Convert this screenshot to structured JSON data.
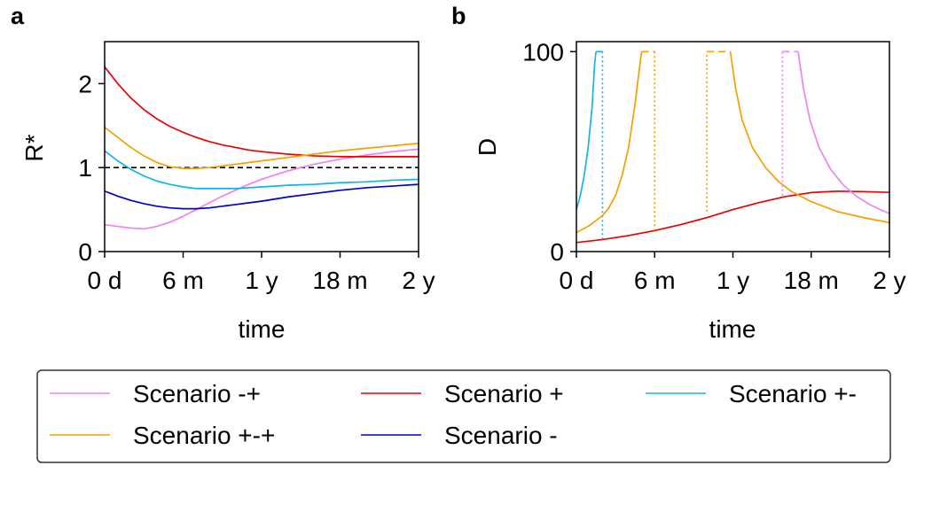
{
  "chart_data": [
    {
      "type": "line",
      "panel_label": "a",
      "xlabel": "time",
      "ylabel": "R*",
      "xlim": [
        0,
        24
      ],
      "ylim": [
        0,
        2.5
      ],
      "x_ticks": [
        0,
        6,
        12,
        18,
        24
      ],
      "x_tick_labels": [
        "0 d",
        "6 m",
        "1 y",
        "18 m",
        "2 y"
      ],
      "y_ticks": [
        0,
        1,
        2
      ],
      "y_tick_labels": [
        "0",
        "1",
        "2"
      ],
      "reference_line": {
        "y": 1,
        "style": "dashed",
        "color": "#000000"
      },
      "series": [
        {
          "name": "Scenario -+",
          "color": "#ee82ee",
          "x": [
            0,
            1,
            2,
            3,
            4,
            5,
            6,
            7,
            8,
            9,
            10,
            11,
            12,
            14,
            16,
            18,
            20,
            22,
            24
          ],
          "y": [
            0.32,
            0.3,
            0.28,
            0.27,
            0.3,
            0.35,
            0.42,
            0.5,
            0.58,
            0.66,
            0.73,
            0.8,
            0.86,
            0.96,
            1.04,
            1.1,
            1.15,
            1.19,
            1.22
          ]
        },
        {
          "name": "Scenario +",
          "color": "#ee0000",
          "x": [
            0,
            1,
            2,
            3,
            4,
            5,
            6,
            7,
            8,
            9,
            10,
            11,
            12,
            14,
            16,
            18,
            20,
            22,
            24
          ],
          "y": [
            2.2,
            2.0,
            1.83,
            1.69,
            1.58,
            1.49,
            1.42,
            1.36,
            1.31,
            1.27,
            1.24,
            1.21,
            1.19,
            1.16,
            1.14,
            1.13,
            1.13,
            1.13,
            1.13
          ]
        },
        {
          "name": "Scenario +-",
          "color": "#11b5e8",
          "x": [
            0,
            1,
            2,
            3,
            4,
            5,
            6,
            7,
            8,
            9,
            10,
            11,
            12,
            14,
            16,
            18,
            20,
            22,
            24
          ],
          "y": [
            1.2,
            1.08,
            0.98,
            0.9,
            0.84,
            0.8,
            0.77,
            0.75,
            0.75,
            0.75,
            0.75,
            0.76,
            0.77,
            0.79,
            0.8,
            0.82,
            0.83,
            0.85,
            0.86
          ]
        },
        {
          "name": "Scenario +-+",
          "color": "#f5a000",
          "x": [
            0,
            1,
            2,
            3,
            4,
            5,
            6,
            7,
            8,
            9,
            10,
            11,
            12,
            14,
            16,
            18,
            20,
            22,
            24
          ],
          "y": [
            1.48,
            1.36,
            1.24,
            1.14,
            1.06,
            1.01,
            0.99,
            0.99,
            1.0,
            1.02,
            1.04,
            1.06,
            1.08,
            1.12,
            1.16,
            1.2,
            1.23,
            1.26,
            1.29
          ]
        },
        {
          "name": "Scenario -",
          "color": "#0000cc",
          "x": [
            0,
            1,
            2,
            3,
            4,
            5,
            6,
            7,
            8,
            9,
            10,
            11,
            12,
            14,
            16,
            18,
            20,
            22,
            24
          ],
          "y": [
            0.72,
            0.66,
            0.61,
            0.57,
            0.54,
            0.52,
            0.51,
            0.51,
            0.52,
            0.54,
            0.56,
            0.58,
            0.6,
            0.65,
            0.69,
            0.73,
            0.76,
            0.78,
            0.8
          ]
        }
      ]
    },
    {
      "type": "line",
      "panel_label": "b",
      "xlabel": "time",
      "ylabel": "D",
      "xlim": [
        0,
        24
      ],
      "ylim": [
        0,
        105
      ],
      "x_ticks": [
        0,
        6,
        12,
        18,
        24
      ],
      "x_tick_labels": [
        "0 d",
        "6 m",
        "1 y",
        "18 m",
        "2 y"
      ],
      "y_ticks": [
        0,
        100
      ],
      "y_tick_labels": [
        "0",
        "100"
      ],
      "series": [
        {
          "name": "Scenario +",
          "color": "#ee0000",
          "style": "solid",
          "x": [
            0,
            2,
            4,
            6,
            8,
            10,
            12,
            14,
            16,
            18,
            20,
            22,
            24
          ],
          "y": [
            4.5,
            6,
            8,
            10.5,
            13.5,
            17,
            21,
            24.5,
            27.5,
            29.5,
            30.2,
            30,
            29.6
          ]
        },
        {
          "name": "Scenario +-",
          "color": "#11b5e8",
          "style": "solid",
          "x": [
            0,
            0.3,
            0.6,
            0.9,
            1.2,
            1.4,
            1.5
          ],
          "y": [
            21,
            28,
            38,
            52,
            72,
            94,
            100
          ]
        },
        {
          "name": "Scenario +-",
          "color": "#11b5e8",
          "style": "solid",
          "x": [
            1.5,
            2.0
          ],
          "y": [
            100,
            100
          ]
        },
        {
          "name": "Scenario +-",
          "color": "#11b5e8",
          "style": "dotted",
          "x": [
            2.0,
            2.0
          ],
          "y": [
            100,
            5
          ]
        },
        {
          "name": "Scenario +-+",
          "color": "#f5a000",
          "style": "solid",
          "x": [
            0,
            1,
            2,
            2.5,
            3,
            3.5,
            4,
            4.5,
            4.8,
            5.0
          ],
          "y": [
            9.5,
            13,
            18,
            22,
            28,
            38,
            52,
            74,
            90,
            100
          ]
        },
        {
          "name": "Scenario +-+",
          "color": "#f5a000",
          "style": "dashed",
          "x": [
            5.0,
            6.0
          ],
          "y": [
            100,
            100
          ]
        },
        {
          "name": "Scenario +-+",
          "color": "#f5a000",
          "style": "dotted",
          "x": [
            6.0,
            6.0
          ],
          "y": [
            100,
            10
          ]
        },
        {
          "name": "Scenario +-+",
          "color": "#f5a000",
          "style": "dotted",
          "x": [
            10.0,
            10.0
          ],
          "y": [
            20,
            100
          ]
        },
        {
          "name": "Scenario +-+",
          "color": "#f5a000",
          "style": "dashed",
          "x": [
            10.0,
            11.8
          ],
          "y": [
            100,
            100
          ]
        },
        {
          "name": "Scenario +-+",
          "color": "#f5a000",
          "style": "solid",
          "x": [
            11.8,
            12.2,
            12.7,
            13.5,
            14.5,
            15.5,
            16.5,
            18,
            20,
            22,
            24
          ],
          "y": [
            100,
            82,
            66,
            52,
            42,
            35,
            30,
            25,
            20,
            17,
            14.5
          ]
        },
        {
          "name": "Scenario -+",
          "color": "#ee82ee",
          "style": "dotted",
          "x": [
            15.8,
            15.8
          ],
          "y": [
            28,
            100
          ]
        },
        {
          "name": "Scenario -+",
          "color": "#ee82ee",
          "style": "dashed",
          "x": [
            15.8,
            17.0
          ],
          "y": [
            100,
            100
          ]
        },
        {
          "name": "Scenario -+",
          "color": "#ee82ee",
          "style": "solid",
          "x": [
            17.0,
            17.4,
            17.9,
            18.6,
            19.5,
            20.5,
            21.5,
            22.5,
            23.3,
            24
          ],
          "y": [
            100,
            82,
            66,
            52,
            41,
            33,
            27.5,
            23.5,
            21,
            19
          ]
        }
      ]
    }
  ],
  "legend": {
    "placement": "bottom",
    "entries": [
      {
        "label": "Scenario -+",
        "color": "#ee82ee"
      },
      {
        "label": "Scenario +",
        "color": "#ee0000"
      },
      {
        "label": "Scenario +-",
        "color": "#11b5e8"
      },
      {
        "label": "Scenario +-+",
        "color": "#f5a000"
      },
      {
        "label": "Scenario -",
        "color": "#0000cc"
      }
    ]
  }
}
